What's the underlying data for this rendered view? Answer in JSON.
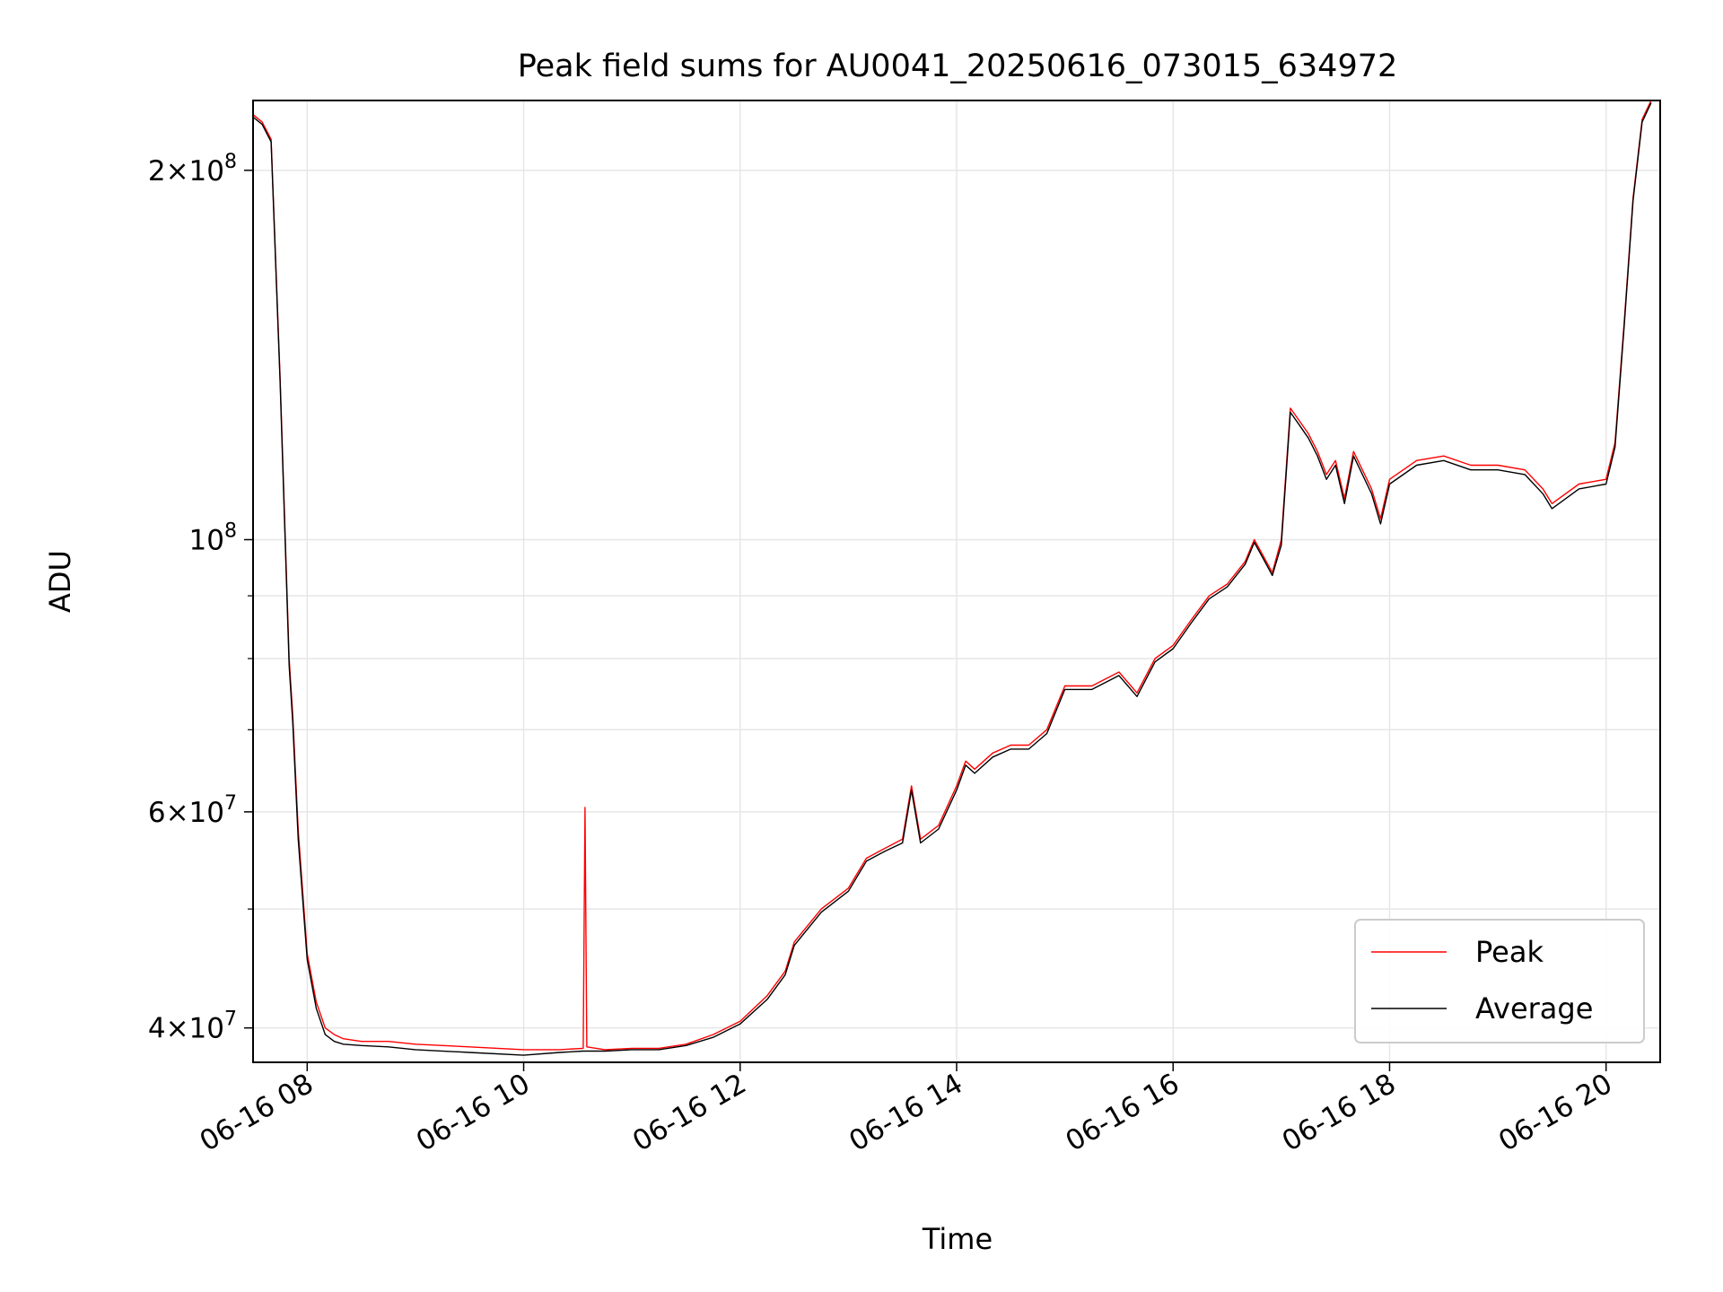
{
  "chart_data": {
    "type": "line",
    "title": "Peak field sums for AU0041_20250616_073015_634972",
    "xlabel": "Time",
    "ylabel": "ADU",
    "yscale": "log",
    "xlim": [
      "2025-06-16T07:30",
      "2025-06-16T20:30"
    ],
    "ylim": [
      37500000,
      228000000
    ],
    "x_ticks": [
      {
        "value": "2025-06-16T08:00",
        "label": "06-16 08"
      },
      {
        "value": "2025-06-16T10:00",
        "label": "06-16 10"
      },
      {
        "value": "2025-06-16T12:00",
        "label": "06-16 12"
      },
      {
        "value": "2025-06-16T14:00",
        "label": "06-16 14"
      },
      {
        "value": "2025-06-16T16:00",
        "label": "06-16 16"
      },
      {
        "value": "2025-06-16T18:00",
        "label": "06-16 18"
      },
      {
        "value": "2025-06-16T20:00",
        "label": "06-16 20"
      }
    ],
    "y_major_ticks": [
      {
        "value": 40000000,
        "mant": "4",
        "exp": "7"
      },
      {
        "value": 60000000,
        "mant": "6",
        "exp": "7"
      },
      {
        "value": 100000000,
        "mant": "",
        "exp": "8"
      },
      {
        "value": 200000000,
        "mant": "2",
        "exp": "8"
      }
    ],
    "y_minor_ticks": [
      50000000,
      70000000,
      80000000,
      90000000
    ],
    "grid": true,
    "legend_position": "lower-right",
    "series": [
      {
        "name": "Peak",
        "color": "#ff0000",
        "x": [
          "2025-06-16T07:30",
          "2025-06-16T07:35",
          "2025-06-16T07:40",
          "2025-06-16T07:45",
          "2025-06-16T07:50",
          "2025-06-16T07:52",
          "2025-06-16T07:55",
          "2025-06-16T08:00",
          "2025-06-16T08:05",
          "2025-06-16T08:10",
          "2025-06-16T08:15",
          "2025-06-16T08:20",
          "2025-06-16T08:30",
          "2025-06-16T08:45",
          "2025-06-16T09:00",
          "2025-06-16T09:30",
          "2025-06-16T10:00",
          "2025-06-16T10:20",
          "2025-06-16T10:33",
          "2025-06-16T10:34",
          "2025-06-16T10:35",
          "2025-06-16T10:45",
          "2025-06-16T11:00",
          "2025-06-16T11:15",
          "2025-06-16T11:30",
          "2025-06-16T11:45",
          "2025-06-16T12:00",
          "2025-06-16T12:15",
          "2025-06-16T12:25",
          "2025-06-16T12:30",
          "2025-06-16T12:45",
          "2025-06-16T13:00",
          "2025-06-16T13:10",
          "2025-06-16T13:20",
          "2025-06-16T13:30",
          "2025-06-16T13:35",
          "2025-06-16T13:40",
          "2025-06-16T13:50",
          "2025-06-16T14:00",
          "2025-06-16T14:05",
          "2025-06-16T14:10",
          "2025-06-16T14:20",
          "2025-06-16T14:30",
          "2025-06-16T14:40",
          "2025-06-16T14:50",
          "2025-06-16T15:00",
          "2025-06-16T15:15",
          "2025-06-16T15:30",
          "2025-06-16T15:40",
          "2025-06-16T15:50",
          "2025-06-16T16:00",
          "2025-06-16T16:10",
          "2025-06-16T16:20",
          "2025-06-16T16:30",
          "2025-06-16T16:40",
          "2025-06-16T16:45",
          "2025-06-16T16:50",
          "2025-06-16T16:55",
          "2025-06-16T17:00",
          "2025-06-16T17:05",
          "2025-06-16T17:10",
          "2025-06-16T17:15",
          "2025-06-16T17:20",
          "2025-06-16T17:25",
          "2025-06-16T17:30",
          "2025-06-16T17:35",
          "2025-06-16T17:40",
          "2025-06-16T17:50",
          "2025-06-16T17:55",
          "2025-06-16T18:00",
          "2025-06-16T18:15",
          "2025-06-16T18:30",
          "2025-06-16T18:45",
          "2025-06-16T19:00",
          "2025-06-16T19:15",
          "2025-06-16T19:25",
          "2025-06-16T19:30",
          "2025-06-16T19:45",
          "2025-06-16T20:00",
          "2025-06-16T20:05",
          "2025-06-16T20:10",
          "2025-06-16T20:15",
          "2025-06-16T20:20",
          "2025-06-16T20:25"
        ],
        "values": [
          222000000,
          219000000,
          212000000,
          135000000,
          80000000,
          72000000,
          58000000,
          46000000,
          42000000,
          40000000,
          39500000,
          39200000,
          39000000,
          39000000,
          38800000,
          38600000,
          38400000,
          38400000,
          38500000,
          60500000,
          38600000,
          38400000,
          38500000,
          38500000,
          38800000,
          39500000,
          40500000,
          42500000,
          44500000,
          47000000,
          50000000,
          52000000,
          55000000,
          56000000,
          57000000,
          63000000,
          57000000,
          58500000,
          63000000,
          66000000,
          65000000,
          67000000,
          68000000,
          68000000,
          70000000,
          76000000,
          76000000,
          78000000,
          75000000,
          80000000,
          82000000,
          86000000,
          90000000,
          92000000,
          96000000,
          100000000,
          97000000,
          94000000,
          100000000,
          128000000,
          125000000,
          122000000,
          118000000,
          113000000,
          116000000,
          108000000,
          118000000,
          110000000,
          104000000,
          112000000,
          116000000,
          117000000,
          115000000,
          115000000,
          114000000,
          110000000,
          107000000,
          111000000,
          112000000,
          120000000,
          150000000,
          190000000,
          220000000,
          228000000
        ]
      },
      {
        "name": "Average",
        "color": "#000000",
        "x": [
          "2025-06-16T07:30",
          "2025-06-16T07:35",
          "2025-06-16T07:40",
          "2025-06-16T07:45",
          "2025-06-16T07:50",
          "2025-06-16T07:52",
          "2025-06-16T07:55",
          "2025-06-16T08:00",
          "2025-06-16T08:05",
          "2025-06-16T08:10",
          "2025-06-16T08:15",
          "2025-06-16T08:20",
          "2025-06-16T08:30",
          "2025-06-16T08:45",
          "2025-06-16T09:00",
          "2025-06-16T09:30",
          "2025-06-16T10:00",
          "2025-06-16T10:20",
          "2025-06-16T10:33",
          "2025-06-16T10:34",
          "2025-06-16T10:35",
          "2025-06-16T10:45",
          "2025-06-16T11:00",
          "2025-06-16T11:15",
          "2025-06-16T11:30",
          "2025-06-16T11:45",
          "2025-06-16T12:00",
          "2025-06-16T12:15",
          "2025-06-16T12:25",
          "2025-06-16T12:30",
          "2025-06-16T12:45",
          "2025-06-16T13:00",
          "2025-06-16T13:10",
          "2025-06-16T13:20",
          "2025-06-16T13:30",
          "2025-06-16T13:35",
          "2025-06-16T13:40",
          "2025-06-16T13:50",
          "2025-06-16T14:00",
          "2025-06-16T14:05",
          "2025-06-16T14:10",
          "2025-06-16T14:20",
          "2025-06-16T14:30",
          "2025-06-16T14:40",
          "2025-06-16T14:50",
          "2025-06-16T15:00",
          "2025-06-16T15:15",
          "2025-06-16T15:30",
          "2025-06-16T15:40",
          "2025-06-16T15:50",
          "2025-06-16T16:00",
          "2025-06-16T16:10",
          "2025-06-16T16:20",
          "2025-06-16T16:30",
          "2025-06-16T16:40",
          "2025-06-16T16:45",
          "2025-06-16T16:50",
          "2025-06-16T16:55",
          "2025-06-16T17:00",
          "2025-06-16T17:05",
          "2025-06-16T17:10",
          "2025-06-16T17:15",
          "2025-06-16T17:20",
          "2025-06-16T17:25",
          "2025-06-16T17:30",
          "2025-06-16T17:35",
          "2025-06-16T17:40",
          "2025-06-16T17:50",
          "2025-06-16T17:55",
          "2025-06-16T18:00",
          "2025-06-16T18:15",
          "2025-06-16T18:30",
          "2025-06-16T18:45",
          "2025-06-16T19:00",
          "2025-06-16T19:15",
          "2025-06-16T19:25",
          "2025-06-16T19:30",
          "2025-06-16T19:45",
          "2025-06-16T20:00",
          "2025-06-16T20:05",
          "2025-06-16T20:10",
          "2025-06-16T20:15",
          "2025-06-16T20:20",
          "2025-06-16T20:25"
        ],
        "values": [
          221000000,
          218000000,
          211000000,
          134000000,
          79000000,
          71000000,
          57000000,
          45500000,
          41500000,
          39500000,
          39000000,
          38800000,
          38700000,
          38600000,
          38400000,
          38200000,
          38000000,
          38200000,
          38300000,
          38300000,
          38300000,
          38300000,
          38400000,
          38400000,
          38700000,
          39300000,
          40300000,
          42200000,
          44200000,
          46700000,
          49700000,
          51700000,
          54700000,
          55700000,
          56600000,
          62500000,
          56600000,
          58100000,
          62500000,
          65500000,
          64500000,
          66500000,
          67500000,
          67500000,
          69500000,
          75500000,
          75500000,
          77500000,
          74500000,
          79500000,
          81500000,
          85500000,
          89500000,
          91500000,
          95500000,
          99500000,
          96500000,
          93500000,
          99000000,
          127000000,
          124000000,
          121000000,
          117000000,
          112000000,
          115000000,
          107000000,
          117000000,
          109000000,
          103000000,
          111000000,
          115000000,
          116000000,
          114000000,
          114000000,
          113000000,
          109000000,
          106000000,
          110000000,
          111000000,
          119000000,
          149000000,
          189000000,
          219000000,
          227000000
        ]
      }
    ]
  }
}
